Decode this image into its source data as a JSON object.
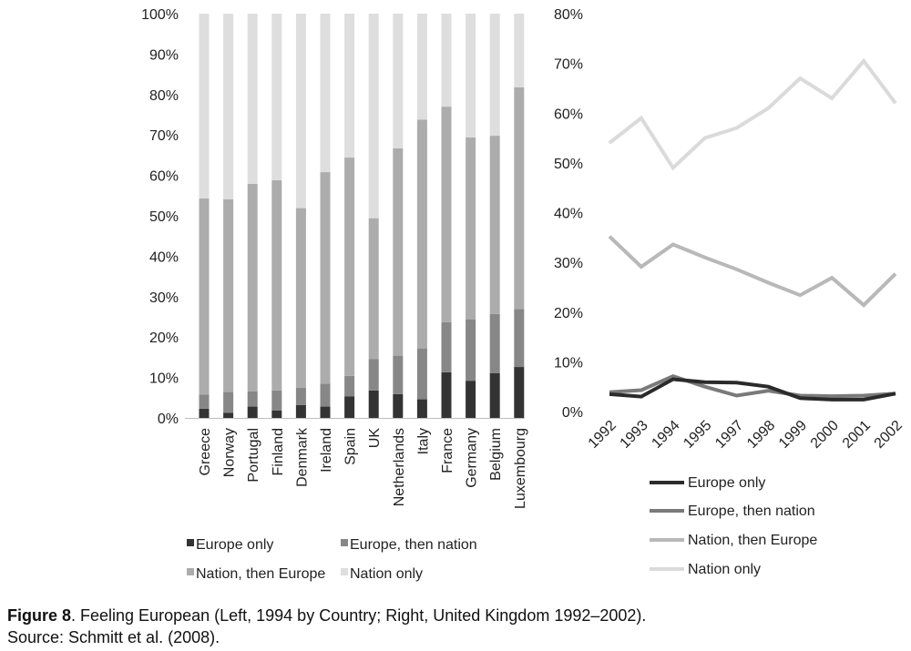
{
  "chart_data": [
    {
      "type": "bar",
      "stacked": true,
      "categories": [
        "Greece",
        "Norway",
        "Portugal",
        "Finland",
        "Denmark",
        "Ireland",
        "Spain",
        "UK",
        "Netherlands",
        "Italy",
        "France",
        "Germany",
        "Belgium",
        "Luxembourg"
      ],
      "series": [
        {
          "name": "Europe only",
          "color": "#333333",
          "values": [
            2.3,
            1.3,
            2.8,
            1.8,
            3.2,
            2.8,
            5.3,
            6.8,
            5.9,
            4.6,
            11.3,
            9.2,
            11.1,
            12.6
          ]
        },
        {
          "name": "Europe, then nation",
          "color": "#878787",
          "values": [
            3.5,
            5.1,
            3.8,
            5.0,
            4.3,
            5.7,
            5.1,
            7.8,
            9.5,
            12.6,
            12.4,
            15.2,
            14.6,
            14.3
          ]
        },
        {
          "name": "Nation, then Europe",
          "color": "#acacac",
          "values": [
            48.5,
            47.7,
            51.3,
            52.0,
            44.4,
            52.3,
            54.0,
            34.8,
            51.3,
            56.6,
            53.3,
            45.0,
            44.1,
            54.9
          ]
        },
        {
          "name": "Nation only",
          "color": "#dedede",
          "values": [
            45.7,
            45.9,
            42.1,
            41.2,
            48.1,
            39.2,
            35.6,
            50.6,
            33.3,
            26.2,
            23.0,
            30.6,
            30.2,
            18.2
          ]
        }
      ],
      "ylim": [
        0,
        100
      ],
      "yticks": [
        "0%",
        "10%",
        "20%",
        "30%",
        "40%",
        "50%",
        "60%",
        "70%",
        "80%",
        "90%",
        "100%"
      ],
      "legend": [
        {
          "label": "Europe only",
          "color": "#333333"
        },
        {
          "label": "Europe, then nation",
          "color": "#878787"
        },
        {
          "label": "Nation, then Europe",
          "color": "#acacac"
        },
        {
          "label": "Nation only",
          "color": "#dedede"
        }
      ],
      "grid": false,
      "legend_position": "bottom"
    },
    {
      "type": "line",
      "categories": [
        "1992",
        "1993",
        "1994",
        "1995",
        "1997",
        "1998",
        "1999",
        "2000",
        "2001",
        "2002"
      ],
      "series": [
        {
          "name": "Europe only",
          "color": "#2b2b2b",
          "values": [
            3.5,
            3.0,
            6.5,
            5.9,
            5.8,
            5.0,
            2.7,
            2.4,
            2.4,
            3.6
          ]
        },
        {
          "name": "Europe, then nation",
          "color": "#7a7a7a",
          "values": [
            3.9,
            4.3,
            7.1,
            5.0,
            3.2,
            4.2,
            3.2,
            3.1,
            3.2,
            3.6
          ]
        },
        {
          "name": "Nation, then Europe",
          "color": "#b8b8b8",
          "values": [
            35.2,
            29.1,
            33.6,
            31.0,
            28.6,
            25.9,
            23.4,
            26.9,
            21.4,
            27.7
          ]
        },
        {
          "name": "Nation only",
          "color": "#dadada",
          "values": [
            54.0,
            59.0,
            49.0,
            55.0,
            57.0,
            61.0,
            67.0,
            63.0,
            70.5,
            62.0
          ]
        }
      ],
      "ylim": [
        0,
        80
      ],
      "yticks": [
        "0%",
        "10%",
        "20%",
        "30%",
        "40%",
        "50%",
        "60%",
        "70%",
        "80%"
      ],
      "legend": [
        {
          "label": "Europe only",
          "color": "#2b2b2b"
        },
        {
          "label": "Europe, then nation",
          "color": "#7a7a7a"
        },
        {
          "label": "Nation, then Europe",
          "color": "#b8b8b8"
        },
        {
          "label": "Nation only",
          "color": "#dadada"
        }
      ],
      "grid": false,
      "legend_position": "bottom"
    }
  ],
  "caption": {
    "figure_label": "Figure 8",
    "title": ". Feeling European (Left, 1994 by Country; Right, United Kingdom 1992–2002).",
    "source": "Source: Schmitt et al. (2008)."
  }
}
